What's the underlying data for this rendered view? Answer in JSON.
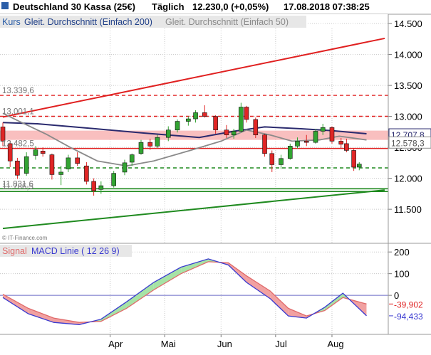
{
  "header": {
    "instrument": "Deutschland 30 Kassa (25€)",
    "interval": "Täglich",
    "last": "12.230,0 (+0,05%)",
    "datetime": "17.08.2018 07:38:25"
  },
  "legend": {
    "kurs": "Kurs",
    "sma200": "Gleit. Durchschnitt (Einfach 200)",
    "sma50": "Gleit. Durchschnitt (Einfach 50)"
  },
  "watermark": "© IT-Finance.com",
  "colors": {
    "up": "#32a432",
    "down": "#e02626",
    "sma200": "#2a2a6e",
    "sma50": "#8a8a8a",
    "resistance": "#e02020",
    "support": "#1f8a1f",
    "zone": "#f8b4b4",
    "macd_up_fill": "#a6e3a6",
    "macd_down_fill": "#f1a1a1",
    "macd_line": "#3a3ad0",
    "signal_line": "#e06a6a",
    "grid": "#c8c8c8"
  },
  "chart_data": [
    {
      "type": "candlestick",
      "title": "",
      "y_ticks": [
        14500,
        14000,
        13500,
        13000,
        12500,
        12000,
        11500
      ],
      "y_tick_labels": [
        "14.500",
        "14.000",
        "13.500",
        "13.000",
        "12.500",
        "12.000",
        "11.500"
      ],
      "x_tick_labels": [
        "Apr",
        "Mai",
        "Jun",
        "Jul",
        "Aug"
      ],
      "x_range": [
        "2018-02-01",
        "2018-08-30"
      ],
      "ylim": [
        10950,
        14650
      ],
      "grid": true,
      "levels": [
        {
          "name": "level-13339",
          "label": "13.339,6",
          "value": 13339.6,
          "style": "dashed",
          "color": "#e02020"
        },
        {
          "name": "level-13001",
          "label": "13.001,1",
          "value": 13001.1,
          "style": "dashed",
          "color": "#e02020"
        },
        {
          "name": "level-12482",
          "label": "12.482,5",
          "value": 12482.5,
          "style": "solid",
          "color": "#e02020"
        },
        {
          "name": "level-12168",
          "label": "",
          "value": 12168,
          "style": "dashed",
          "color": "#1f8a1f"
        },
        {
          "name": "level-11831",
          "label": "11.831,6",
          "value": 11831.6,
          "style": "solid",
          "color": "#1f8a1f"
        },
        {
          "name": "level-11786",
          "label": "11.786,5",
          "value": 11786.5,
          "style": "solid",
          "color": "#1f8a1f"
        }
      ],
      "zone": {
        "from": 12770,
        "to": 12620
      },
      "right_labels": [
        {
          "label": "12.707,8",
          "value": 12707.8,
          "kind": "sma200"
        },
        {
          "label": "12.578,3",
          "value": 12578.3,
          "kind": "sma50"
        }
      ],
      "trendlines": [
        {
          "name": "resistance-trendline",
          "from": [
            "2018-02-01",
            12990
          ],
          "to": [
            "2018-08-30",
            14260
          ]
        },
        {
          "name": "support-trendline",
          "from": [
            "2018-02-01",
            11190
          ],
          "to": [
            "2018-08-30",
            11810
          ]
        }
      ],
      "series": [
        {
          "name": "Gleit. Durchschnitt (Einfach 200)",
          "points": [
            [
              "2018-02-01",
              12900
            ],
            [
              "2018-02-20",
              12880
            ],
            [
              "2018-03-20",
              12810
            ],
            [
              "2018-04-20",
              12730
            ],
            [
              "2018-05-20",
              12660
            ],
            [
              "2018-06-08",
              12760
            ],
            [
              "2018-06-25",
              12830
            ],
            [
              "2018-07-15",
              12800
            ],
            [
              "2018-08-01",
              12770
            ],
            [
              "2018-08-20",
              12720
            ]
          ]
        },
        {
          "name": "Gleit. Durchschnitt (Einfach 50)",
          "points": [
            [
              "2018-02-01",
              13050
            ],
            [
              "2018-02-10",
              12920
            ],
            [
              "2018-02-25",
              12710
            ],
            [
              "2018-03-10",
              12500
            ],
            [
              "2018-03-25",
              12280
            ],
            [
              "2018-04-10",
              12200
            ],
            [
              "2018-04-25",
              12280
            ],
            [
              "2018-05-15",
              12450
            ],
            [
              "2018-06-01",
              12600
            ],
            [
              "2018-06-15",
              12780
            ],
            [
              "2018-06-28",
              12700
            ],
            [
              "2018-07-10",
              12600
            ],
            [
              "2018-07-25",
              12620
            ],
            [
              "2018-08-05",
              12680
            ],
            [
              "2018-08-20",
              12620
            ]
          ]
        }
      ],
      "ohlc": [
        [
          "2018-02-01",
          12830,
          12900,
          12520,
          12600
        ],
        [
          "2018-02-05",
          12560,
          12610,
          12180,
          12280
        ],
        [
          "2018-02-09",
          12280,
          12330,
          11990,
          12050
        ],
        [
          "2018-02-14",
          12080,
          12420,
          12040,
          12350
        ],
        [
          "2018-02-19",
          12370,
          12520,
          12300,
          12460
        ],
        [
          "2018-02-23",
          12440,
          12500,
          12350,
          12400
        ],
        [
          "2018-02-28",
          12380,
          12400,
          11980,
          12060
        ],
        [
          "2018-03-05",
          12060,
          12200,
          11890,
          12100
        ],
        [
          "2018-03-09",
          12150,
          12380,
          12100,
          12330
        ],
        [
          "2018-03-14",
          12330,
          12420,
          12200,
          12240
        ],
        [
          "2018-03-19",
          12200,
          12260,
          11900,
          11950
        ],
        [
          "2018-03-23",
          11950,
          12000,
          11720,
          11800
        ],
        [
          "2018-03-27",
          11820,
          11950,
          11750,
          11880
        ],
        [
          "2018-04-03",
          11880,
          12120,
          11850,
          12080
        ],
        [
          "2018-04-09",
          12100,
          12300,
          12050,
          12250
        ],
        [
          "2018-04-13",
          12260,
          12400,
          12200,
          12380
        ],
        [
          "2018-04-18",
          12400,
          12620,
          12380,
          12580
        ],
        [
          "2018-04-23",
          12580,
          12640,
          12460,
          12520
        ],
        [
          "2018-04-27",
          12520,
          12700,
          12490,
          12660
        ],
        [
          "2018-05-03",
          12660,
          12840,
          12600,
          12780
        ],
        [
          "2018-05-08",
          12780,
          12950,
          12740,
          12920
        ],
        [
          "2018-05-14",
          12920,
          13000,
          12850,
          12960
        ],
        [
          "2018-05-18",
          12960,
          13100,
          12900,
          13060
        ],
        [
          "2018-05-23",
          13060,
          13180,
          12980,
          13000
        ],
        [
          "2018-05-29",
          13000,
          13020,
          12720,
          12780
        ],
        [
          "2018-06-04",
          12780,
          12860,
          12650,
          12700
        ],
        [
          "2018-06-08",
          12700,
          12800,
          12640,
          12760
        ],
        [
          "2018-06-12",
          12760,
          13220,
          12740,
          13150
        ],
        [
          "2018-06-15",
          13150,
          13170,
          12900,
          12950
        ],
        [
          "2018-06-20",
          12950,
          12980,
          12650,
          12700
        ],
        [
          "2018-06-25",
          12700,
          12720,
          12350,
          12400
        ],
        [
          "2018-06-29",
          12400,
          12450,
          12100,
          12220
        ],
        [
          "2018-07-04",
          12220,
          12380,
          12150,
          12320
        ],
        [
          "2018-07-09",
          12320,
          12560,
          12300,
          12520
        ],
        [
          "2018-07-13",
          12520,
          12660,
          12480,
          12600
        ],
        [
          "2018-07-18",
          12600,
          12700,
          12520,
          12580
        ],
        [
          "2018-07-23",
          12580,
          12800,
          12560,
          12760
        ],
        [
          "2018-07-27",
          12760,
          12880,
          12700,
          12820
        ],
        [
          "2018-08-01",
          12820,
          12840,
          12560,
          12600
        ],
        [
          "2018-08-06",
          12600,
          12650,
          12480,
          12550
        ],
        [
          "2018-08-09",
          12560,
          12640,
          12420,
          12450
        ],
        [
          "2018-08-13",
          12450,
          12480,
          12120,
          12180
        ],
        [
          "2018-08-16",
          12180,
          12260,
          12130,
          12230
        ]
      ]
    },
    {
      "type": "line",
      "title": "",
      "legend": [
        "Signal",
        "MACD Linie ( 12 26 9)"
      ],
      "y_ticks": [
        200,
        100,
        0
      ],
      "y_tick_labels": [
        "200",
        "100",
        "0"
      ],
      "ylim": [
        -180,
        240
      ],
      "right_labels": [
        {
          "label": "-39,902",
          "value": -39.902,
          "kind": "signal"
        },
        {
          "label": "-94,433",
          "value": -94.433,
          "kind": "macd"
        }
      ],
      "series": [
        {
          "name": "MACD Linie ( 12 26 9)",
          "points": [
            [
              "2018-02-01",
              -10
            ],
            [
              "2018-02-15",
              -85
            ],
            [
              "2018-03-01",
              -125
            ],
            [
              "2018-03-15",
              -135
            ],
            [
              "2018-03-27",
              -110
            ],
            [
              "2018-04-10",
              -30
            ],
            [
              "2018-04-25",
              60
            ],
            [
              "2018-05-10",
              130
            ],
            [
              "2018-05-25",
              168
            ],
            [
              "2018-06-05",
              140
            ],
            [
              "2018-06-15",
              60
            ],
            [
              "2018-06-28",
              -15
            ],
            [
              "2018-07-08",
              -95
            ],
            [
              "2018-07-18",
              -105
            ],
            [
              "2018-07-28",
              -55
            ],
            [
              "2018-08-07",
              10
            ],
            [
              "2018-08-20",
              -94.433
            ]
          ]
        },
        {
          "name": "Signal",
          "points": [
            [
              "2018-02-01",
              5
            ],
            [
              "2018-02-15",
              -60
            ],
            [
              "2018-03-01",
              -105
            ],
            [
              "2018-03-15",
              -125
            ],
            [
              "2018-03-27",
              -120
            ],
            [
              "2018-04-10",
              -60
            ],
            [
              "2018-04-25",
              25
            ],
            [
              "2018-05-10",
              100
            ],
            [
              "2018-05-25",
              155
            ],
            [
              "2018-06-05",
              150
            ],
            [
              "2018-06-15",
              90
            ],
            [
              "2018-06-28",
              20
            ],
            [
              "2018-07-08",
              -60
            ],
            [
              "2018-07-18",
              -95
            ],
            [
              "2018-07-28",
              -70
            ],
            [
              "2018-08-07",
              -10
            ],
            [
              "2018-08-20",
              -39.902
            ]
          ]
        }
      ]
    }
  ]
}
